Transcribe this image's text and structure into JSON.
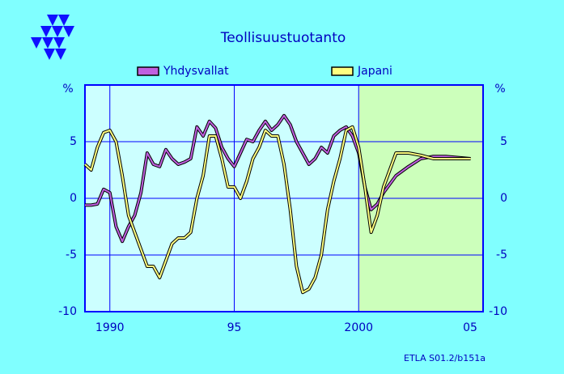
{
  "chart_data": {
    "type": "line",
    "title": "Teollisuustuotanto",
    "y_unit": "%",
    "annotation": "ETLA S01.2/b151a",
    "x": [
      1989,
      1989.25,
      1989.5,
      1989.75,
      1990,
      1990.25,
      1990.5,
      1990.75,
      1991,
      1991.25,
      1991.5,
      1991.75,
      1992,
      1992.25,
      1992.5,
      1992.75,
      1993,
      1993.25,
      1993.5,
      1993.75,
      1994,
      1994.25,
      1994.5,
      1994.75,
      1995,
      1995.25,
      1995.5,
      1995.75,
      1996,
      1996.25,
      1996.5,
      1996.75,
      1997,
      1997.25,
      1997.5,
      1997.75,
      1998,
      1998.25,
      1998.5,
      1998.75,
      1999,
      1999.25,
      1999.5,
      1999.75,
      2000,
      2000.25,
      2000.5,
      2000.75,
      2001,
      2001.5,
      2002,
      2002.5,
      2003,
      2003.5,
      2004,
      2004.5
    ],
    "series": [
      {
        "name": "Yhdysvallat",
        "color": "#c060e0",
        "values": [
          -0.6,
          -0.6,
          -0.5,
          0.8,
          0.5,
          -2.5,
          -3.8,
          -2.5,
          -1.5,
          0.5,
          4.0,
          3.0,
          2.8,
          4.3,
          3.5,
          3.0,
          3.2,
          3.5,
          6.3,
          5.5,
          6.8,
          6.2,
          4.5,
          3.5,
          2.8,
          4.0,
          5.2,
          5.0,
          6.0,
          6.8,
          6.0,
          6.5,
          7.3,
          6.5,
          5.0,
          4.0,
          3.0,
          3.5,
          4.5,
          4.0,
          5.5,
          6.0,
          6.3,
          5.5,
          4.0,
          1.0,
          -1.0,
          -0.5,
          0.5,
          2.0,
          2.8,
          3.5,
          3.7,
          3.7,
          3.6,
          3.5
        ]
      },
      {
        "name": "Japani",
        "color": "#ffff80",
        "values": [
          3.0,
          2.5,
          4.5,
          5.8,
          6.0,
          5.0,
          2.0,
          -1.5,
          -3.0,
          -4.5,
          -6.0,
          -6.0,
          -7.0,
          -5.5,
          -4.0,
          -3.5,
          -3.5,
          -3.0,
          0.0,
          2.0,
          5.5,
          5.5,
          3.5,
          1.0,
          1.0,
          0.0,
          1.5,
          3.5,
          4.5,
          6.0,
          5.5,
          5.5,
          3.0,
          -1.0,
          -6.0,
          -8.3,
          -8.0,
          -7.0,
          -5.0,
          -1.0,
          1.5,
          3.5,
          6.0,
          6.3,
          4.5,
          1.0,
          -3.0,
          -1.5,
          1.0,
          4.0,
          4.0,
          3.8,
          3.5,
          3.5,
          3.5,
          3.5
        ]
      }
    ],
    "xlim": [
      1989,
      2005
    ],
    "xticks": [
      1990,
      {
        "value": 1995,
        "label": "95"
      },
      2000,
      {
        "value": 2005,
        "label": "05"
      }
    ],
    "ylim": [
      -10,
      10
    ],
    "yticks": [
      -10,
      -5,
      0,
      5
    ],
    "forecast_start": 2000,
    "grid": true
  }
}
